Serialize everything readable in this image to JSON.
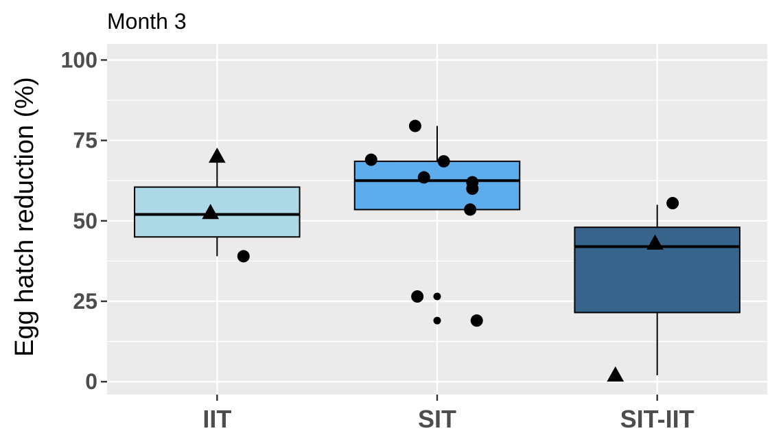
{
  "chart_data": {
    "type": "box",
    "title": "Month 3",
    "xlabel": "",
    "ylabel": "Egg hatch reduction (%)",
    "ylim": [
      -4,
      105
    ],
    "yticks": [
      0,
      25,
      50,
      75,
      100
    ],
    "grid": true,
    "legend": "none",
    "categories": [
      "IIT",
      "SIT",
      "SIT-IIT"
    ],
    "boxes": [
      {
        "category": "IIT",
        "q1": 45,
        "median": 52,
        "q3": 60.5,
        "whisker_low": 39,
        "whisker_high": 70,
        "fill": "#ADD8E6"
      },
      {
        "category": "SIT",
        "q1": 53.5,
        "median": 62.5,
        "q3": 68.5,
        "whisker_low": 53.5,
        "whisker_high": 79.5,
        "fill": "#5DADEC"
      },
      {
        "category": "SIT-IIT",
        "q1": 21.5,
        "median": 42,
        "q3": 48,
        "whisker_low": 2,
        "whisker_high": 55,
        "fill": "#36648B"
      }
    ],
    "points": [
      {
        "category": "IIT",
        "offset": 0.0,
        "y": 70,
        "shape": "triangle",
        "size": "large"
      },
      {
        "category": "IIT",
        "offset": -0.03,
        "y": 52.5,
        "shape": "triangle",
        "size": "large"
      },
      {
        "category": "IIT",
        "offset": 0.12,
        "y": 39,
        "shape": "circle",
        "size": "large"
      },
      {
        "category": "SIT",
        "offset": -0.1,
        "y": 79.5,
        "shape": "circle",
        "size": "large"
      },
      {
        "category": "SIT",
        "offset": -0.3,
        "y": 69,
        "shape": "circle",
        "size": "large"
      },
      {
        "category": "SIT",
        "offset": 0.03,
        "y": 68.5,
        "shape": "circle",
        "size": "large"
      },
      {
        "category": "SIT",
        "offset": -0.06,
        "y": 63.5,
        "shape": "circle",
        "size": "large"
      },
      {
        "category": "SIT",
        "offset": 0.16,
        "y": 62,
        "shape": "circle",
        "size": "large"
      },
      {
        "category": "SIT",
        "offset": 0.16,
        "y": 60,
        "shape": "circle",
        "size": "large"
      },
      {
        "category": "SIT",
        "offset": 0.15,
        "y": 53.5,
        "shape": "circle",
        "size": "large"
      },
      {
        "category": "SIT",
        "offset": -0.09,
        "y": 26.5,
        "shape": "circle",
        "size": "large"
      },
      {
        "category": "SIT",
        "offset": 0.0,
        "y": 26.5,
        "shape": "circle",
        "size": "small"
      },
      {
        "category": "SIT",
        "offset": 0.0,
        "y": 19,
        "shape": "circle",
        "size": "small"
      },
      {
        "category": "SIT",
        "offset": 0.18,
        "y": 19,
        "shape": "circle",
        "size": "large"
      },
      {
        "category": "SIT-IIT",
        "offset": 0.07,
        "y": 55.5,
        "shape": "circle",
        "size": "large"
      },
      {
        "category": "SIT-IIT",
        "offset": -0.01,
        "y": 43,
        "shape": "triangle",
        "size": "large"
      },
      {
        "category": "SIT-IIT",
        "offset": -0.19,
        "y": 2,
        "shape": "triangle",
        "size": "large"
      }
    ],
    "colors": {
      "panel_background": "#EBEBEB",
      "grid": "#FFFFFF",
      "outline": "#000000",
      "tick_text": "#4D4D4D"
    }
  }
}
